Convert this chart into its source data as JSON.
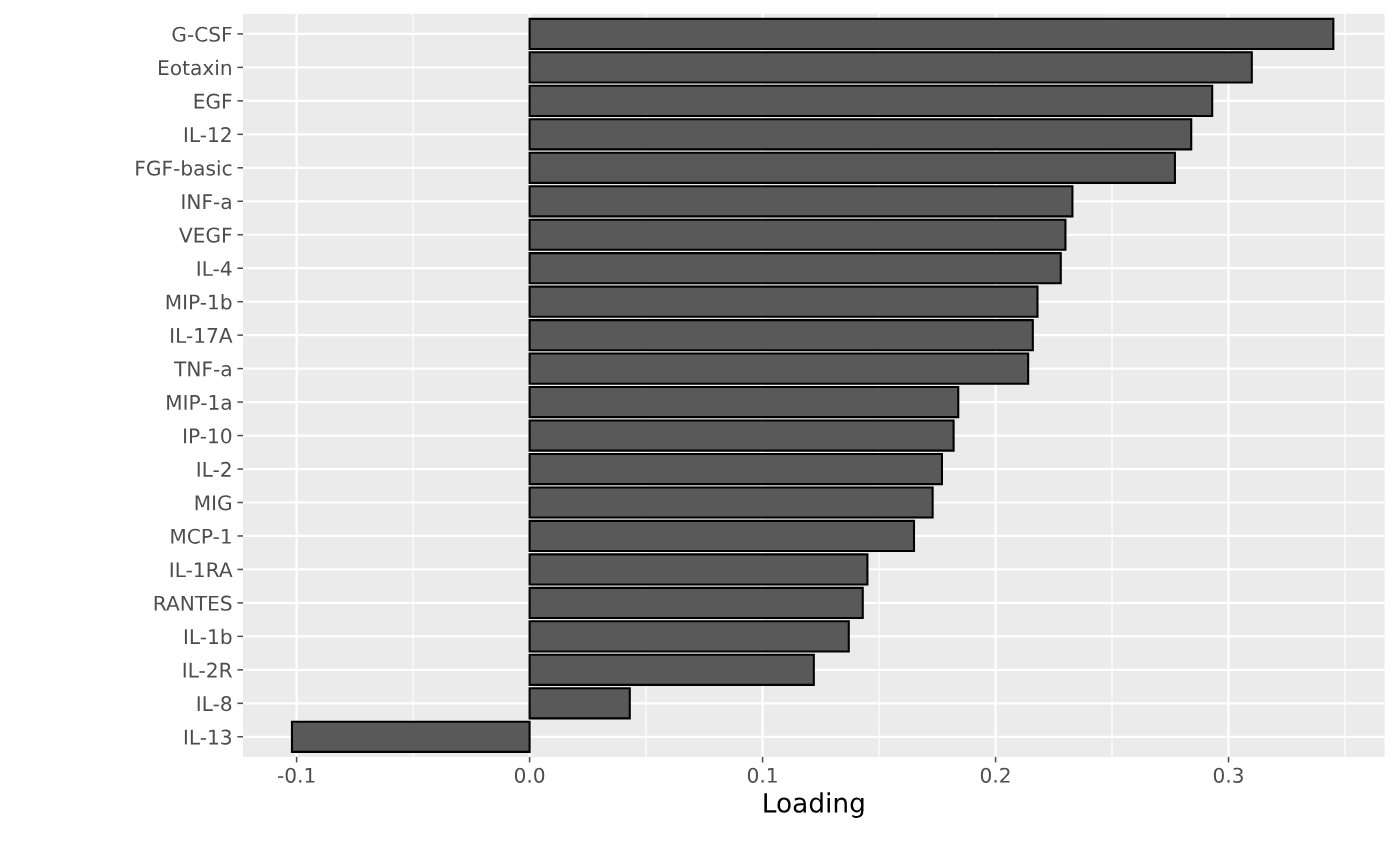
{
  "chart_data": {
    "type": "bar",
    "orientation": "horizontal",
    "xlabel": "Loading",
    "categories": [
      "G-CSF",
      "Eotaxin",
      "EGF",
      "IL-12",
      "FGF-basic",
      "INF-a",
      "VEGF",
      "IL-4",
      "MIP-1b",
      "IL-17A",
      "TNF-a",
      "MIP-1a",
      "IP-10",
      "IL-2",
      "MIG",
      "MCP-1",
      "IL-1RA",
      "RANTES",
      "IL-1b",
      "IL-2R",
      "IL-8",
      "IL-13"
    ],
    "values": [
      0.345,
      0.31,
      0.293,
      0.284,
      0.277,
      0.233,
      0.23,
      0.228,
      0.218,
      0.216,
      0.214,
      0.184,
      0.182,
      0.177,
      0.173,
      0.165,
      0.145,
      0.143,
      0.137,
      0.122,
      0.043,
      -0.102
    ],
    "color": "#595959",
    "xlim": [
      -0.123,
      0.367
    ],
    "xticks": [
      {
        "value": -0.1,
        "label": "-0.1"
      },
      {
        "value": 0,
        "label": "0.0"
      },
      {
        "value": 0.1,
        "label": "0.1"
      },
      {
        "value": 0.2,
        "label": "0.2"
      },
      {
        "value": 0.3,
        "label": "0.3"
      }
    ],
    "grid": true
  }
}
